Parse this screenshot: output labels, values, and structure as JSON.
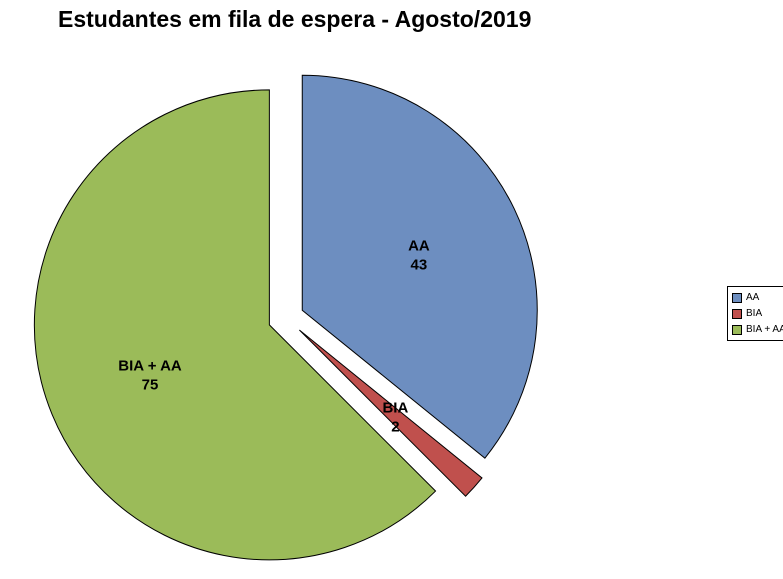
{
  "chart_data": {
    "type": "pie",
    "title": "Estudantes em fila de espera - Agosto/2019",
    "categories": [
      "AA",
      "BIA",
      "BIA + AA"
    ],
    "values": [
      43,
      2,
      75
    ],
    "colors": [
      "#6d8ec0",
      "#c0504d",
      "#9bbb59"
    ],
    "start_angle_deg": 0,
    "direction": "clockwise",
    "exploded": true,
    "background": "#ffffff",
    "label_color": "#000000",
    "stroke_color": "#000000",
    "slice_labels": [
      {
        "line1": "AA",
        "line2": "43"
      },
      {
        "line1": "BIA",
        "line2": "2"
      },
      {
        "line1": "BIA + AA",
        "line2": "75"
      }
    ],
    "legend": {
      "position": "right",
      "items": [
        "AA",
        "BIA",
        "BIA + AA"
      ]
    }
  }
}
